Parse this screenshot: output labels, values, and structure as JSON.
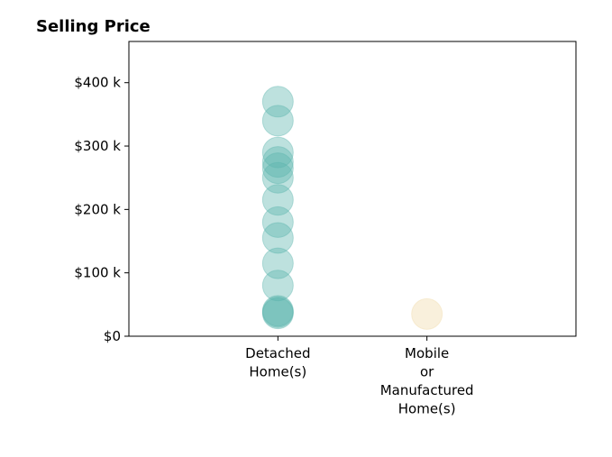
{
  "chart_data": {
    "type": "scatter",
    "title": "Selling Price",
    "xlabel": "",
    "ylabel": "",
    "categories": [
      [
        "Detached",
        "Home(s)"
      ],
      [
        "Mobile",
        "or",
        "Manufactured",
        "Home(s)"
      ]
    ],
    "y_ticks": [
      {
        "value": 0,
        "label": "$0"
      },
      {
        "value": 100000,
        "label": "$100 k"
      },
      {
        "value": 200000,
        "label": "$200 k"
      },
      {
        "value": 300000,
        "label": "$300 k"
      },
      {
        "value": 400000,
        "label": "$400 k"
      }
    ],
    "ylim": [
      0,
      465000
    ],
    "xlim": [
      -1,
      2
    ],
    "series": [
      {
        "category_index": 0,
        "color": "#5ab4ac",
        "values": [
          370000,
          340000,
          290000,
          275000,
          265000,
          250000,
          215000,
          180000,
          155000,
          115000,
          80000,
          40000,
          38000,
          36000
        ]
      },
      {
        "category_index": 1,
        "color": "#f0d9a8",
        "values": [
          35000
        ]
      }
    ],
    "marker_opacity": 0.4,
    "grid": false,
    "legend": "none"
  }
}
